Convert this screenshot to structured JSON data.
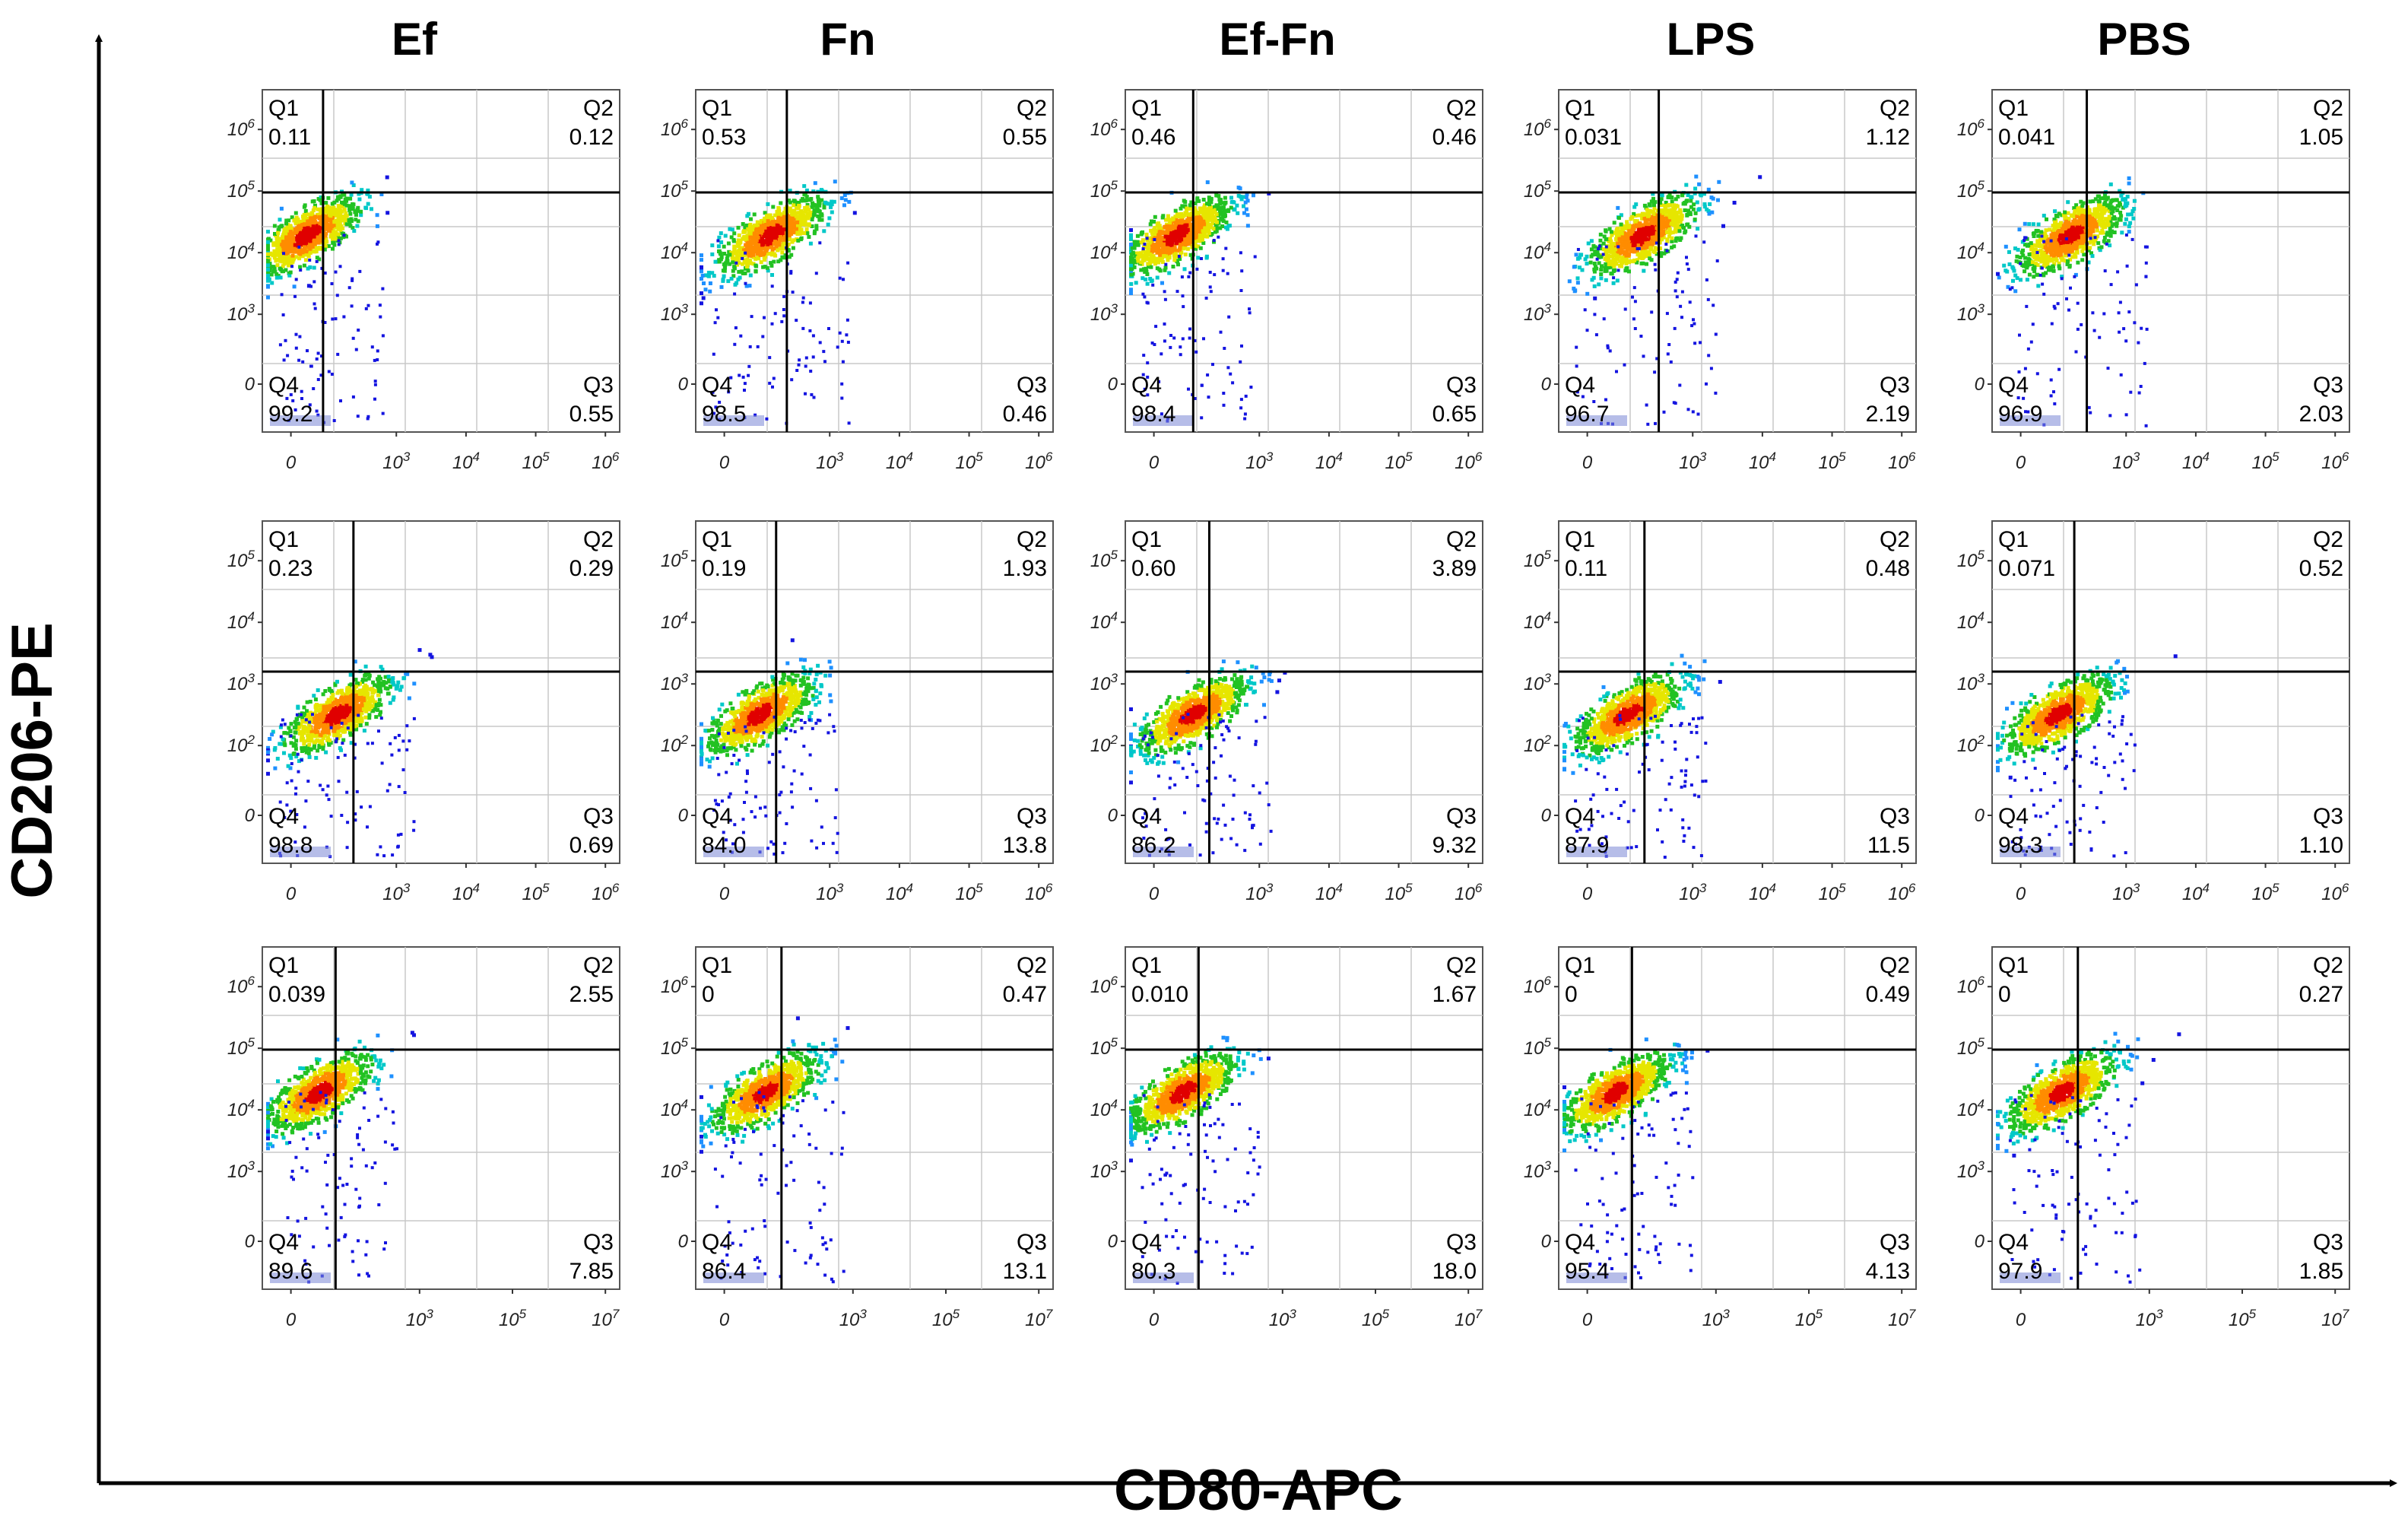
{
  "chart_data": {
    "type": "scatter",
    "subtype": "flow-cytometry-density-grid",
    "xlabel": "CD80-APC",
    "ylabel": "CD206-PE",
    "columns": [
      "Ef",
      "Fn",
      "Ef-Fn",
      "LPS",
      "PBS"
    ],
    "rows": [
      {
        "x_ticks": [
          "0",
          "10^3",
          "10^4",
          "10^5",
          "10^6"
        ],
        "y_ticks": [
          "0",
          "10^3",
          "10^4",
          "10^5",
          "10^6"
        ],
        "panels": [
          {
            "Q1": "0.11",
            "Q2": "0.12",
            "Q3": "0.55",
            "Q4": "99.2"
          },
          {
            "Q1": "0.53",
            "Q2": "0.55",
            "Q3": "0.46",
            "Q4": "98.5"
          },
          {
            "Q1": "0.46",
            "Q2": "0.46",
            "Q3": "0.65",
            "Q4": "98.4"
          },
          {
            "Q1": "0.031",
            "Q2": "1.12",
            "Q3": "2.19",
            "Q4": "96.7"
          },
          {
            "Q1": "0.041",
            "Q2": "1.05",
            "Q3": "2.03",
            "Q4": "96.9"
          }
        ]
      },
      {
        "x_ticks": [
          "0",
          "10^3",
          "10^4",
          "10^5",
          "10^6"
        ],
        "y_ticks": [
          "0",
          "10^2",
          "10^3",
          "10^4",
          "10^5"
        ],
        "panels": [
          {
            "Q1": "0.23",
            "Q2": "0.29",
            "Q3": "0.69",
            "Q4": "98.8"
          },
          {
            "Q1": "0.19",
            "Q2": "1.93",
            "Q3": "13.8",
            "Q4": "84.0"
          },
          {
            "Q1": "0.60",
            "Q2": "3.89",
            "Q3": "9.32",
            "Q4": "86.2"
          },
          {
            "Q1": "0.11",
            "Q2": "0.48",
            "Q3": "11.5",
            "Q4": "87.9"
          },
          {
            "Q1": "0.071",
            "Q2": "0.52",
            "Q3": "1.10",
            "Q4": "98.3"
          }
        ]
      },
      {
        "x_ticks": [
          "0",
          "10^3",
          "10^5",
          "10^7"
        ],
        "y_ticks": [
          "0",
          "10^3",
          "10^4",
          "10^5",
          "10^6"
        ],
        "panels": [
          {
            "Q1": "0.039",
            "Q2": "2.55",
            "Q3": "7.85",
            "Q4": "89.6"
          },
          {
            "Q1": "0",
            "Q2": "0.47",
            "Q3": "13.1",
            "Q4": "86.4"
          },
          {
            "Q1": "0.010",
            "Q2": "1.67",
            "Q3": "18.0",
            "Q4": "80.3"
          },
          {
            "Q1": "0",
            "Q2": "0.49",
            "Q3": "4.13",
            "Q4": "95.4"
          },
          {
            "Q1": "0",
            "Q2": "0.27",
            "Q3": "1.85",
            "Q4": "97.9"
          }
        ]
      }
    ]
  },
  "colors": {
    "density": [
      "#1414e0",
      "#1e90ff",
      "#00c8c8",
      "#22c222",
      "#e6e600",
      "#ff8c00",
      "#e00000"
    ],
    "gate": "#000000",
    "grid": "#c8c8c8"
  }
}
